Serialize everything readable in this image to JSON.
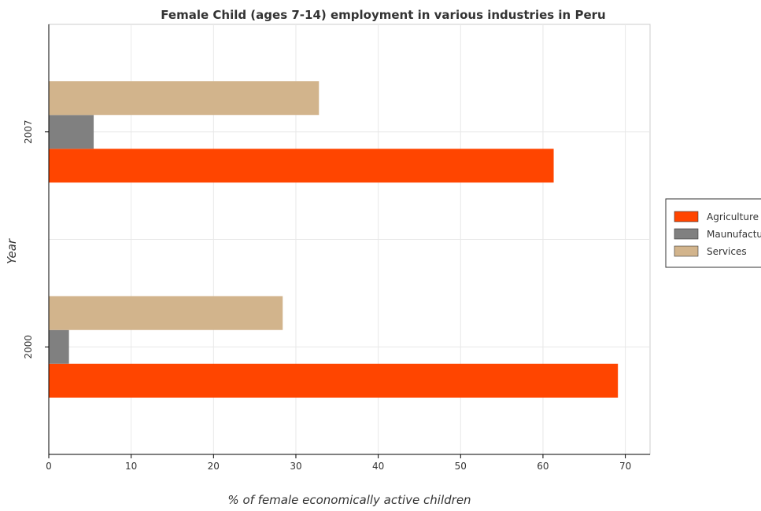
{
  "chart_data": {
    "type": "bar",
    "orientation": "horizontal",
    "title": "Female Child (ages 7-14) employment in various industries in Peru",
    "xlabel": "% of female economically active children",
    "ylabel": "Year",
    "categories": [
      "2000",
      "2007"
    ],
    "series": [
      {
        "name": "Agriculture",
        "color": "#ff4500",
        "values": [
          69.1,
          61.3
        ]
      },
      {
        "name": "Maunufacturing",
        "color": "#808080",
        "values": [
          2.45,
          5.45
        ]
      },
      {
        "name": "Services",
        "color": "#d2b48c",
        "values": [
          28.4,
          32.8
        ]
      }
    ],
    "xlim": [
      0,
      73
    ],
    "xticks": [
      0,
      10,
      20,
      30,
      40,
      50,
      60,
      70
    ],
    "grid": true,
    "legend_position": "right"
  }
}
